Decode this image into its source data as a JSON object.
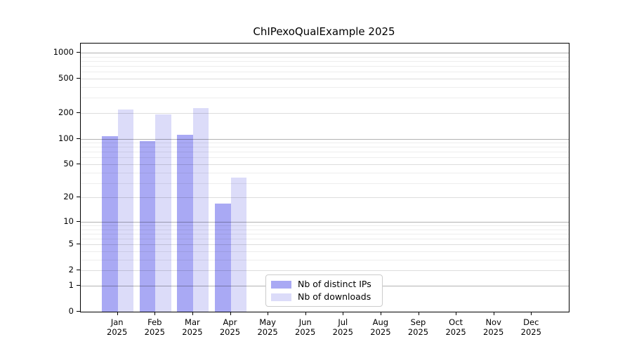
{
  "chart_data": {
    "type": "bar",
    "title": "ChIPexoQualExample 2025",
    "categories": [
      "Jan",
      "Feb",
      "Mar",
      "Apr",
      "May",
      "Jun",
      "Jul",
      "Aug",
      "Sep",
      "Oct",
      "Nov",
      "Dec"
    ],
    "category_year": "2025",
    "series": [
      {
        "name": "Nb of distinct IPs",
        "color": "#a9a9f4",
        "values": [
          107,
          94,
          110,
          17,
          null,
          null,
          null,
          null,
          null,
          null,
          null,
          null
        ]
      },
      {
        "name": "Nb of downloads",
        "color": "#dcdcf9",
        "values": [
          220,
          193,
          228,
          35,
          null,
          null,
          null,
          null,
          null,
          null,
          null,
          null
        ]
      }
    ],
    "yscale": "log1p",
    "ylim": [
      0,
      1275
    ],
    "yticks": [
      0,
      1,
      2,
      5,
      10,
      20,
      50,
      100,
      200,
      500,
      1000
    ],
    "minor_ticks": [
      3,
      4,
      6,
      7,
      8,
      9,
      30,
      40,
      60,
      70,
      80,
      90,
      300,
      400,
      600,
      700,
      800,
      900
    ],
    "grid": true,
    "legend_position": "bottom-center",
    "xlabel": "",
    "ylabel": ""
  },
  "colors": {
    "grid_major_pow10": "#b3b3b3",
    "grid_major": "#dddddd",
    "grid_minor": "#ededed",
    "axis": "#000000",
    "background": "#ffffff",
    "legend_border": "#cccccc"
  }
}
